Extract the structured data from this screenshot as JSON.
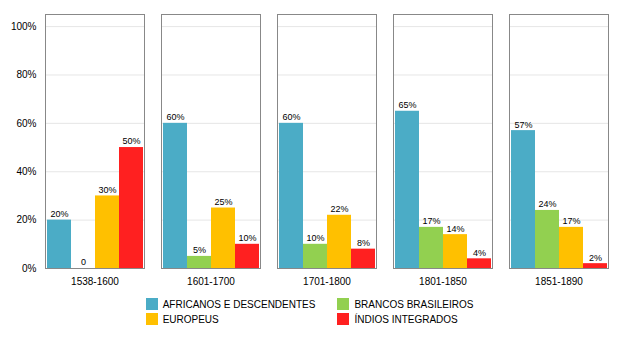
{
  "chart_data": {
    "type": "bar",
    "categories": [
      "1538-1600",
      "1601-1700",
      "1701-1800",
      "1801-1850",
      "1851-1890"
    ],
    "series": [
      {
        "name": "AFRICANOS E DESCENDENTES",
        "color": "#4BACC6",
        "values": [
          20,
          60,
          60,
          65,
          57
        ],
        "value_labels": [
          "20%",
          "60%",
          "60%",
          "65%",
          "57%"
        ]
      },
      {
        "name": "BRANCOS BRASILEIROS",
        "color": "#92D050",
        "values": [
          0,
          5,
          10,
          17,
          24
        ],
        "value_labels": [
          "0",
          "5%",
          "10%",
          "17%",
          "24%"
        ]
      },
      {
        "name": "EUROPEUS",
        "color": "#FFC000",
        "values": [
          30,
          25,
          22,
          14,
          17
        ],
        "value_labels": [
          "30%",
          "25%",
          "22%",
          "14%",
          "17%"
        ]
      },
      {
        "name": "ÍNDIOS INTEGRADOS",
        "color": "#FF2020",
        "values": [
          50,
          10,
          8,
          4,
          2
        ],
        "value_labels": [
          "50%",
          "10%",
          "8%",
          "4%",
          "2%"
        ]
      }
    ],
    "ylim": [
      0,
      105
    ],
    "yticks": [
      {
        "value": 0,
        "label": "0%"
      },
      {
        "value": 20,
        "label": "20%"
      },
      {
        "value": 40,
        "label": "40%"
      },
      {
        "value": 60,
        "label": "60%"
      },
      {
        "value": 80,
        "label": "80%"
      },
      {
        "value": 100,
        "label": "100%"
      }
    ],
    "grid": true,
    "data_labels": true,
    "legend": "bottom"
  }
}
